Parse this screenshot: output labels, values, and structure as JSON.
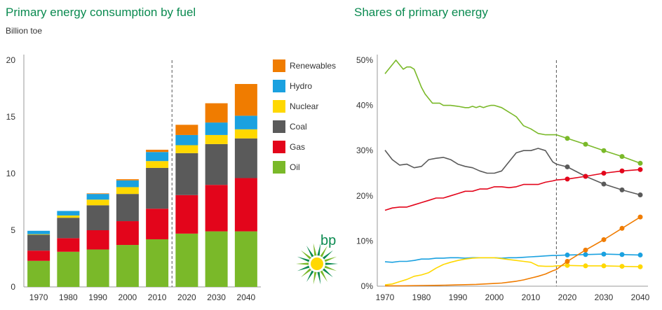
{
  "left_chart": {
    "title": "Primary energy consumption by fuel",
    "unit_label": "Billion toe"
  },
  "right_chart": {
    "title": "Shares of primary energy"
  },
  "logo": {
    "text": "bp"
  },
  "colors": {
    "Oil": "#7ab929",
    "Gas": "#e3051b",
    "Coal": "#5a5a5a",
    "Nuclear": "#ffd800",
    "Hydro": "#1aa1e0",
    "Renewables": "#f07c00"
  },
  "chart_data": [
    {
      "type": "bar",
      "stacked": true,
      "title": "Primary energy consumption by fuel",
      "ylabel": "Billion toe",
      "ylim": [
        0,
        20
      ],
      "yticks": [
        0,
        5,
        10,
        15,
        20
      ],
      "categories": [
        "1970",
        "1980",
        "1990",
        "2000",
        "2010",
        "2020",
        "2030",
        "2040"
      ],
      "projection_divider_after": "2010",
      "legend_position": "right",
      "series": [
        {
          "name": "Oil",
          "values": [
            2.3,
            3.1,
            3.3,
            3.7,
            4.2,
            4.7,
            4.9,
            4.9
          ]
        },
        {
          "name": "Gas",
          "values": [
            0.9,
            1.2,
            1.7,
            2.1,
            2.7,
            3.4,
            4.1,
            4.7
          ]
        },
        {
          "name": "Coal",
          "values": [
            1.4,
            1.8,
            2.2,
            2.4,
            3.6,
            3.7,
            3.6,
            3.5
          ]
        },
        {
          "name": "Nuclear",
          "values": [
            0.05,
            0.2,
            0.5,
            0.6,
            0.6,
            0.7,
            0.8,
            0.8
          ]
        },
        {
          "name": "Hydro",
          "values": [
            0.3,
            0.4,
            0.5,
            0.6,
            0.8,
            0.9,
            1.1,
            1.2
          ]
        },
        {
          "name": "Renewables",
          "values": [
            0,
            0,
            0.05,
            0.1,
            0.2,
            0.9,
            1.7,
            2.8
          ]
        }
      ]
    },
    {
      "type": "line",
      "title": "Shares of primary energy",
      "ylim": [
        0,
        50
      ],
      "yticks": [
        "0%",
        "10%",
        "20%",
        "30%",
        "40%",
        "50%"
      ],
      "xlim": [
        1970,
        2040
      ],
      "xticks": [
        1970,
        1980,
        1990,
        2000,
        2010,
        2020,
        2030,
        2040
      ],
      "projection_divider_x": 2017,
      "marker_years": [
        2020,
        2025,
        2030,
        2035,
        2040
      ],
      "series": [
        {
          "name": "Oil",
          "x": [
            1970,
            1971,
            1973,
            1974,
            1975,
            1976,
            1977,
            1978,
            1979,
            1980,
            1981,
            1982,
            1983,
            1984,
            1985,
            1986,
            1988,
            1990,
            1992,
            1993,
            1994,
            1995,
            1996,
            1997,
            1998,
            1999,
            2000,
            2002,
            2004,
            2005,
            2006,
            2008,
            2010,
            2012,
            2014,
            2016,
            2017,
            2020,
            2025,
            2030,
            2035,
            2040
          ],
          "y": [
            47,
            48,
            50,
            49,
            48,
            48.5,
            48.5,
            48,
            46,
            44,
            42.5,
            41.5,
            40.5,
            40.5,
            40.5,
            40,
            40,
            39.8,
            39.5,
            39.5,
            39.8,
            39.5,
            39.8,
            39.5,
            39.8,
            40,
            40,
            39.5,
            38.5,
            38,
            37.5,
            35.5,
            34.8,
            33.8,
            33.5,
            33.5,
            33.5,
            32.7,
            31.4,
            30,
            28.7,
            27.2
          ]
        },
        {
          "name": "Coal",
          "x": [
            1970,
            1972,
            1974,
            1976,
            1978,
            1980,
            1982,
            1984,
            1986,
            1988,
            1990,
            1992,
            1994,
            1996,
            1998,
            2000,
            2002,
            2004,
            2006,
            2008,
            2010,
            2012,
            2014,
            2016,
            2017,
            2020,
            2025,
            2030,
            2035,
            2040
          ],
          "y": [
            30.1,
            28,
            26.8,
            27,
            26.2,
            26.5,
            28,
            28.3,
            28.5,
            28,
            27,
            26.5,
            26.2,
            25.5,
            25,
            25,
            25.5,
            27.5,
            29.5,
            30,
            30,
            30.5,
            30,
            27.5,
            27,
            26.4,
            24.3,
            22.6,
            21.3,
            20.2
          ]
        },
        {
          "name": "Gas",
          "x": [
            1970,
            1972,
            1974,
            1976,
            1978,
            1980,
            1982,
            1984,
            1986,
            1988,
            1990,
            1992,
            1994,
            1996,
            1998,
            2000,
            2002,
            2004,
            2006,
            2008,
            2010,
            2012,
            2014,
            2016,
            2017,
            2020,
            2025,
            2030,
            2035,
            2040
          ],
          "y": [
            16.8,
            17.3,
            17.5,
            17.5,
            18,
            18.5,
            19,
            19.5,
            19.5,
            20,
            20.5,
            21,
            21,
            21.5,
            21.5,
            22,
            22,
            21.8,
            22,
            22.5,
            22.5,
            22.5,
            23,
            23.3,
            23.5,
            23.7,
            24.3,
            25,
            25.5,
            25.8
          ]
        },
        {
          "name": "Hydro",
          "x": [
            1970,
            1972,
            1974,
            1976,
            1978,
            1980,
            1982,
            1984,
            1986,
            1988,
            1990,
            1992,
            1994,
            1996,
            1998,
            2000,
            2002,
            2004,
            2006,
            2008,
            2010,
            2012,
            2014,
            2016,
            2017,
            2020,
            2025,
            2030,
            2035,
            2040
          ],
          "y": [
            5.4,
            5.3,
            5.5,
            5.5,
            5.7,
            6,
            6,
            6.2,
            6.2,
            6.3,
            6.3,
            6.2,
            6.3,
            6.3,
            6.3,
            6.3,
            6.2,
            6.3,
            6.3,
            6.4,
            6.5,
            6.6,
            6.7,
            6.8,
            6.8,
            6.9,
            7,
            7.1,
            7,
            6.9
          ]
        },
        {
          "name": "Nuclear",
          "x": [
            1970,
            1972,
            1974,
            1976,
            1978,
            1980,
            1982,
            1984,
            1986,
            1988,
            1990,
            1992,
            1994,
            1996,
            1998,
            2000,
            2002,
            2004,
            2006,
            2008,
            2010,
            2012,
            2014,
            2016,
            2017,
            2020,
            2025,
            2030,
            2035,
            2040
          ],
          "y": [
            0.3,
            0.5,
            1,
            1.5,
            2.2,
            2.5,
            3,
            4,
            4.8,
            5.3,
            5.7,
            6,
            6.2,
            6.3,
            6.3,
            6.3,
            6.1,
            5.9,
            5.7,
            5.5,
            5.3,
            4.5,
            4.4,
            4.4,
            4.5,
            4.6,
            4.5,
            4.5,
            4.4,
            4.3
          ]
        },
        {
          "name": "Renewables",
          "x": [
            1970,
            1975,
            1980,
            1985,
            1990,
            1995,
            2000,
            2002,
            2004,
            2006,
            2008,
            2010,
            2012,
            2014,
            2016,
            2017,
            2020,
            2025,
            2030,
            2035,
            2040
          ],
          "y": [
            0.1,
            0.1,
            0.15,
            0.2,
            0.3,
            0.4,
            0.6,
            0.7,
            0.9,
            1.1,
            1.4,
            1.8,
            2.2,
            2.7,
            3.4,
            3.7,
            5.5,
            8,
            10.3,
            12.8,
            15.3
          ]
        }
      ]
    }
  ]
}
